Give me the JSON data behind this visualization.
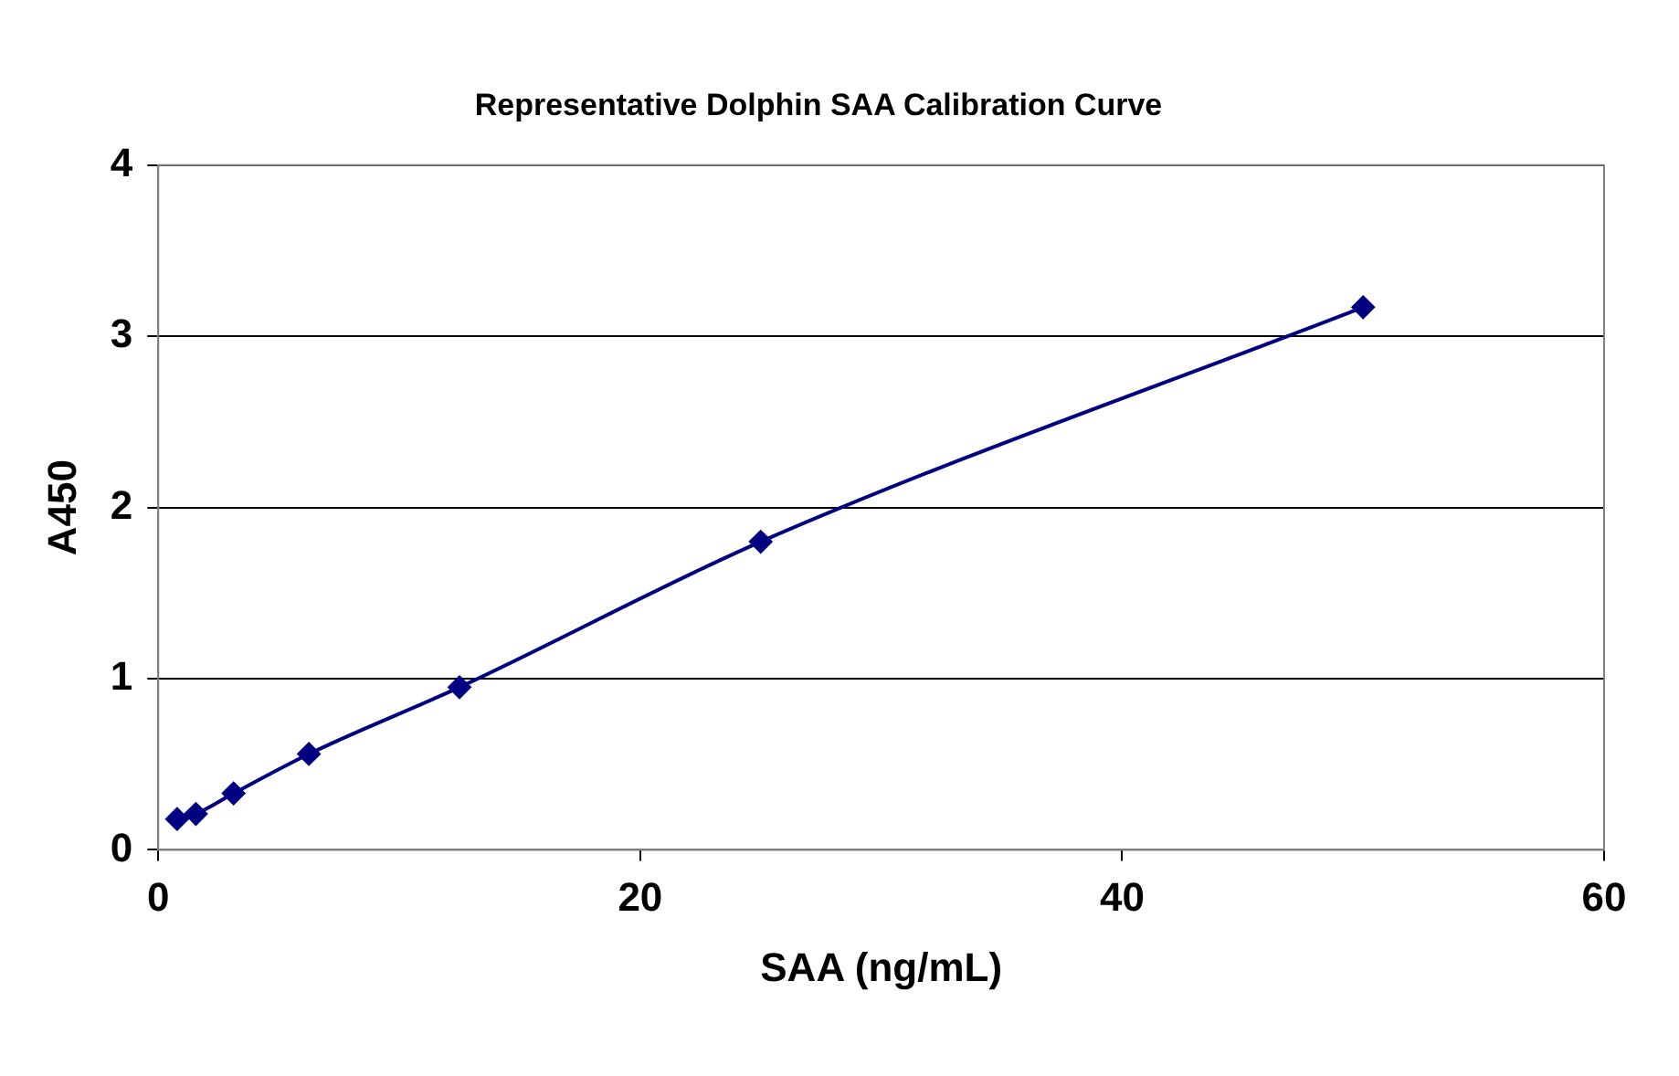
{
  "chart_data": {
    "type": "line",
    "title": "Representative Dolphin SAA Calibration Curve",
    "xlabel": "SAA (ng/mL)",
    "ylabel": "A450",
    "series": [
      {
        "color": "#000080",
        "x": [
          0.78,
          1.56,
          3.125,
          6.25,
          12.5,
          25,
          50
        ],
        "values": [
          0.18,
          0.21,
          0.33,
          0.56,
          0.95,
          1.8,
          3.17
        ]
      }
    ],
    "xlim": [
      0,
      60
    ],
    "xticks": [
      0,
      20,
      40,
      60
    ],
    "ylim": [
      0,
      4
    ],
    "yticks": [
      0,
      1,
      2,
      3,
      4
    ],
    "grid": "y",
    "legend": false,
    "marker": "diamond",
    "line_style": "solid"
  }
}
